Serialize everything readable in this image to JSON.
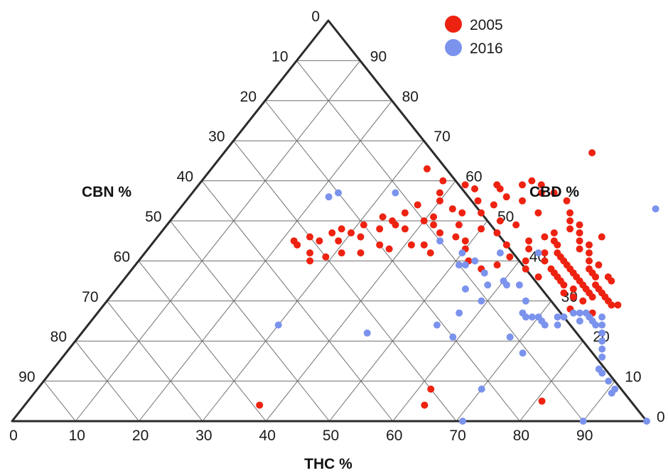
{
  "chart_data": {
    "type": "scatter",
    "subtype": "ternary",
    "title": "",
    "axes": {
      "bottom": {
        "label": "THC %",
        "ticks": [
          "0",
          "10",
          "20",
          "30",
          "40",
          "50",
          "60",
          "70",
          "80",
          "90"
        ]
      },
      "left": {
        "label": "CBN %",
        "ticks": [
          "0",
          "10",
          "20",
          "30",
          "40",
          "50",
          "60",
          "70",
          "80",
          "90"
        ]
      },
      "right": {
        "label": "CBD %",
        "ticks": [
          "0",
          "10",
          "20",
          "30",
          "40",
          "50",
          "60",
          "70",
          "80",
          "90"
        ]
      }
    },
    "grid": true,
    "legend_position": "top-right",
    "series": [
      {
        "name": "2005",
        "color": "#ee2211",
        "points": [
          {
            "thc": 58,
            "cbd": 67
          },
          {
            "thc": 34,
            "cbd": 63
          },
          {
            "thc": 38,
            "cbd": 60
          },
          {
            "thc": 42,
            "cbd": 59
          },
          {
            "thc": 44,
            "cbd": 58
          },
          {
            "thc": 47,
            "cbd": 59
          },
          {
            "thc": 48,
            "cbd": 58
          },
          {
            "thc": 51,
            "cbd": 59
          },
          {
            "thc": 52,
            "cbd": 60
          },
          {
            "thc": 54,
            "cbd": 59
          },
          {
            "thc": 55,
            "cbd": 57
          },
          {
            "thc": 57,
            "cbd": 57
          },
          {
            "thc": 53,
            "cbd": 55
          },
          {
            "thc": 50,
            "cbd": 56
          },
          {
            "thc": 49,
            "cbd": 54
          },
          {
            "thc": 48,
            "cbd": 52
          },
          {
            "thc": 46,
            "cbd": 55
          },
          {
            "thc": 45,
            "cbd": 52
          },
          {
            "thc": 43,
            "cbd": 53
          },
          {
            "thc": 41,
            "cbd": 51
          },
          {
            "thc": 40,
            "cbd": 55
          },
          {
            "thc": 39,
            "cbd": 57
          },
          {
            "thc": 37,
            "cbd": 54
          },
          {
            "thc": 36,
            "cbd": 52
          },
          {
            "thc": 35,
            "cbd": 50
          },
          {
            "thc": 33,
            "cbd": 51
          },
          {
            "thc": 31,
            "cbd": 49
          },
          {
            "thc": 30,
            "cbd": 47
          },
          {
            "thc": 29,
            "cbd": 45
          },
          {
            "thc": 28,
            "cbd": 48
          },
          {
            "thc": 27,
            "cbd": 47
          },
          {
            "thc": 26,
            "cbd": 45
          },
          {
            "thc": 24,
            "cbd": 46
          },
          {
            "thc": 23,
            "cbd": 44
          },
          {
            "thc": 22,
            "cbd": 45
          },
          {
            "thc": 32,
            "cbd": 46
          },
          {
            "thc": 34,
            "cbd": 48
          },
          {
            "thc": 36,
            "cbd": 49
          },
          {
            "thc": 38,
            "cbd": 48
          },
          {
            "thc": 40,
            "cbd": 50
          },
          {
            "thc": 42,
            "cbd": 49
          },
          {
            "thc": 44,
            "cbd": 47
          },
          {
            "thc": 46,
            "cbd": 49
          },
          {
            "thc": 47,
            "cbd": 46
          },
          {
            "thc": 49,
            "cbd": 45
          },
          {
            "thc": 50,
            "cbd": 48
          },
          {
            "thc": 52,
            "cbd": 50
          },
          {
            "thc": 53,
            "cbd": 47
          },
          {
            "thc": 55,
            "cbd": 49
          },
          {
            "thc": 57,
            "cbd": 52
          },
          {
            "thc": 56,
            "cbd": 44
          },
          {
            "thc": 52,
            "cbd": 40
          },
          {
            "thc": 55,
            "cbd": 38
          },
          {
            "thc": 50,
            "cbd": 43
          },
          {
            "thc": 45,
            "cbd": 42
          },
          {
            "thc": 43,
            "cbd": 44
          },
          {
            "thc": 41,
            "cbd": 44
          },
          {
            "thc": 38,
            "cbd": 43
          },
          {
            "thc": 36,
            "cbd": 44
          },
          {
            "thc": 34,
            "cbd": 42
          },
          {
            "thc": 31,
            "cbd": 42
          },
          {
            "thc": 29,
            "cbd": 41
          },
          {
            "thc": 27,
            "cbd": 40
          },
          {
            "thc": 26,
            "cbd": 42
          },
          {
            "thc": 60,
            "cbd": 55
          },
          {
            "thc": 62,
            "cbd": 52
          },
          {
            "thc": 63,
            "cbd": 50
          },
          {
            "thc": 64,
            "cbd": 48
          },
          {
            "thc": 65,
            "cbd": 49
          },
          {
            "thc": 66,
            "cbd": 47
          },
          {
            "thc": 67,
            "cbd": 45
          },
          {
            "thc": 68,
            "cbd": 43
          },
          {
            "thc": 69,
            "cbd": 44
          },
          {
            "thc": 70,
            "cbd": 42
          },
          {
            "thc": 71,
            "cbd": 40
          },
          {
            "thc": 72,
            "cbd": 38
          },
          {
            "thc": 73,
            "cbd": 37
          },
          {
            "thc": 74,
            "cbd": 36
          },
          {
            "thc": 75,
            "cbd": 34
          },
          {
            "thc": 76,
            "cbd": 33
          },
          {
            "thc": 77,
            "cbd": 32
          },
          {
            "thc": 78,
            "cbd": 31
          },
          {
            "thc": 79,
            "cbd": 30
          },
          {
            "thc": 80,
            "cbd": 29
          },
          {
            "thc": 81,
            "cbd": 29
          },
          {
            "thc": 64,
            "cbd": 44
          },
          {
            "thc": 65,
            "cbd": 42
          },
          {
            "thc": 66,
            "cbd": 41
          },
          {
            "thc": 67,
            "cbd": 40
          },
          {
            "thc": 68,
            "cbd": 39
          },
          {
            "thc": 69,
            "cbd": 38
          },
          {
            "thc": 70,
            "cbd": 37
          },
          {
            "thc": 71,
            "cbd": 36
          },
          {
            "thc": 72,
            "cbd": 35
          },
          {
            "thc": 73,
            "cbd": 34
          },
          {
            "thc": 74,
            "cbd": 33
          },
          {
            "thc": 75,
            "cbd": 32
          },
          {
            "thc": 76,
            "cbd": 31
          },
          {
            "thc": 63,
            "cbd": 42
          },
          {
            "thc": 64,
            "cbd": 40
          },
          {
            "thc": 66,
            "cbd": 38
          },
          {
            "thc": 67,
            "cbd": 37
          },
          {
            "thc": 69,
            "cbd": 35
          },
          {
            "thc": 70,
            "cbd": 34
          },
          {
            "thc": 72,
            "cbd": 33
          },
          {
            "thc": 73,
            "cbd": 31
          },
          {
            "thc": 75,
            "cbd": 30
          },
          {
            "thc": 61,
            "cbd": 40
          },
          {
            "thc": 62,
            "cbd": 38
          },
          {
            "thc": 65,
            "cbd": 36
          },
          {
            "thc": 68,
            "cbd": 36
          },
          {
            "thc": 71,
            "cbd": 32
          },
          {
            "thc": 74,
            "cbd": 28
          },
          {
            "thc": 78,
            "cbd": 27
          },
          {
            "thc": 60,
            "cbd": 43
          },
          {
            "thc": 59,
            "cbd": 45
          },
          {
            "thc": 61,
            "cbd": 46
          },
          {
            "thc": 62,
            "cbd": 47
          },
          {
            "thc": 63,
            "cbd": 45
          },
          {
            "thc": 58,
            "cbd": 41
          },
          {
            "thc": 57,
            "cbd": 39
          },
          {
            "thc": 76,
            "cbd": 36
          },
          {
            "thc": 77,
            "cbd": 35
          },
          {
            "thc": 73,
            "cbd": 39
          },
          {
            "thc": 70,
            "cbd": 46
          },
          {
            "thc": 37,
            "cbd": 4
          },
          {
            "thc": 62,
            "cbd": 8
          },
          {
            "thc": 63,
            "cbd": 4
          },
          {
            "thc": 81,
            "cbd": 5
          }
        ]
      },
      {
        "name": "2016",
        "color": "#7b93ed",
        "points": [
          {
            "thc": 22,
            "cbd": 56
          },
          {
            "thc": 23,
            "cbd": 57
          },
          {
            "thc": 32,
            "cbd": 57
          },
          {
            "thc": 45,
            "cbd": 45
          },
          {
            "thc": 50,
            "cbd": 42
          },
          {
            "thc": 51,
            "cbd": 39
          },
          {
            "thc": 52,
            "cbd": 39
          },
          {
            "thc": 53,
            "cbd": 40
          },
          {
            "thc": 56,
            "cbd": 37
          },
          {
            "thc": 55,
            "cbd": 33
          },
          {
            "thc": 58,
            "cbd": 34
          },
          {
            "thc": 57,
            "cbd": 27
          },
          {
            "thc": 59,
            "cbd": 30
          },
          {
            "thc": 60,
            "cbd": 35
          },
          {
            "thc": 61,
            "cbd": 34
          },
          {
            "thc": 62,
            "cbd": 42
          },
          {
            "thc": 63,
            "cbd": 34
          },
          {
            "thc": 66,
            "cbd": 30
          },
          {
            "thc": 67,
            "cbd": 27
          },
          {
            "thc": 68,
            "cbd": 26
          },
          {
            "thc": 69,
            "cbd": 26
          },
          {
            "thc": 70,
            "cbd": 26
          },
          {
            "thc": 71,
            "cbd": 25
          },
          {
            "thc": 72,
            "cbd": 24
          },
          {
            "thc": 73,
            "cbd": 26
          },
          {
            "thc": 74,
            "cbd": 26
          },
          {
            "thc": 75,
            "cbd": 27
          },
          {
            "thc": 76,
            "cbd": 27
          },
          {
            "thc": 77,
            "cbd": 27
          },
          {
            "thc": 78,
            "cbd": 26
          },
          {
            "thc": 79,
            "cbd": 25
          },
          {
            "thc": 80,
            "cbd": 24
          },
          {
            "thc": 81,
            "cbd": 24
          },
          {
            "thc": 82,
            "cbd": 22
          },
          {
            "thc": 83,
            "cbd": 20
          },
          {
            "thc": 84,
            "cbd": 18
          },
          {
            "thc": 85,
            "cbd": 16
          },
          {
            "thc": 86,
            "cbd": 13
          },
          {
            "thc": 87,
            "cbd": 12
          },
          {
            "thc": 89,
            "cbd": 10
          },
          {
            "thc": 91,
            "cbd": 8
          },
          {
            "thc": 91,
            "cbd": 7
          },
          {
            "thc": 68,
            "cbd": 21
          },
          {
            "thc": 72,
            "cbd": 17
          },
          {
            "thc": 77,
            "cbd": 25
          },
          {
            "thc": 80,
            "cbd": 26
          },
          {
            "thc": 74,
            "cbd": 24
          },
          {
            "thc": 55,
            "cbd": 24
          },
          {
            "thc": 59,
            "cbd": 21
          },
          {
            "thc": 70,
            "cbd": 8
          },
          {
            "thc": 71,
            "cbd": 0
          },
          {
            "thc": 90,
            "cbd": 0
          },
          {
            "thc": 100,
            "cbd": 0
          },
          {
            "thc": 75,
            "cbd": 53
          },
          {
            "thc": 30,
            "cbd": 24
          },
          {
            "thc": 45,
            "cbd": 22
          },
          {
            "thc": 56,
            "cbd": 42
          }
        ]
      }
    ]
  }
}
